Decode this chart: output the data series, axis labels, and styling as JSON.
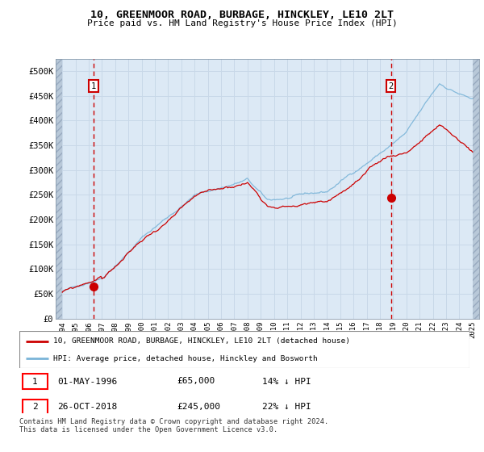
{
  "title": "10, GREENMOOR ROAD, BURBAGE, HINCKLEY, LE10 2LT",
  "subtitle": "Price paid vs. HM Land Registry's House Price Index (HPI)",
  "ylim": [
    0,
    525000
  ],
  "yticks": [
    0,
    50000,
    100000,
    150000,
    200000,
    250000,
    300000,
    350000,
    400000,
    450000,
    500000
  ],
  "ytick_labels": [
    "£0",
    "£50K",
    "£100K",
    "£150K",
    "£200K",
    "£250K",
    "£300K",
    "£350K",
    "£400K",
    "£450K",
    "£500K"
  ],
  "hpi_color": "#7ab4d8",
  "price_color": "#cc0000",
  "dot_color": "#cc0000",
  "vline_color": "#cc0000",
  "bg_color": "#dce9f5",
  "grid_color": "#c0d0e0",
  "legend_label_price": "10, GREENMOOR ROAD, BURBAGE, HINCKLEY, LE10 2LT (detached house)",
  "legend_label_hpi": "HPI: Average price, detached house, Hinckley and Bosworth",
  "purchase1_date": 1996.37,
  "purchase1_price": 65000,
  "purchase2_date": 2018.83,
  "purchase2_price": 245000,
  "footer": "Contains HM Land Registry data © Crown copyright and database right 2024.\nThis data is licensed under the Open Government Licence v3.0.",
  "xmin": 1993.5,
  "xmax": 2025.5,
  "data_xmin": 1994.0,
  "data_xmax": 2025.0
}
